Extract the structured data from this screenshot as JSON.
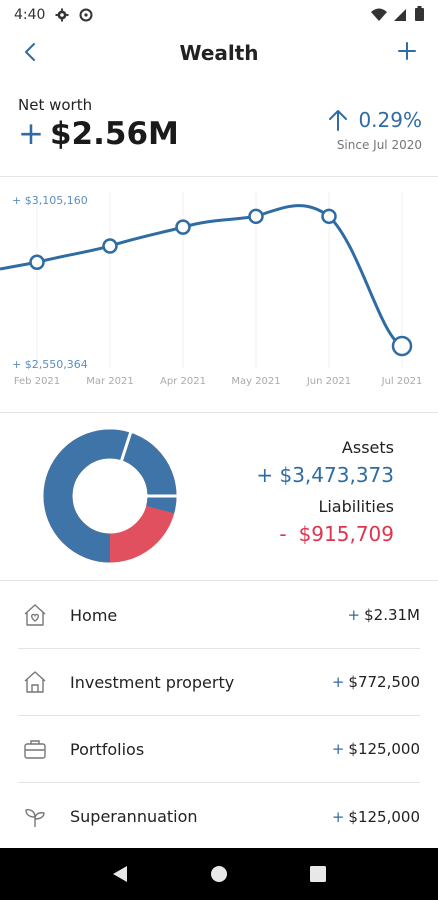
{
  "status_bar": {
    "time": "4:40"
  },
  "header": {
    "title": "Wealth"
  },
  "net_worth": {
    "label": "Net worth",
    "sign": "+",
    "value": "$2.56M",
    "change": "0.29%",
    "since": "Since Jul 2020"
  },
  "chart_data": {
    "type": "line",
    "x": [
      "Feb 2021",
      "Mar 2021",
      "Apr 2021",
      "May 2021",
      "Jun 2021",
      "Jul 2021"
    ],
    "max_label": "+ $3,105,160",
    "min_label": "+ $2,550,364",
    "series": [
      {
        "values": [
          2860000,
          2920000,
          2990000,
          3030000,
          3030000,
          2550364
        ]
      }
    ],
    "ylim": [
      2550364,
      3105160
    ],
    "grid": "vertical"
  },
  "summary": {
    "assets_label": "Assets",
    "assets_sign": "+",
    "assets_value": "$3,473,373",
    "liabilities_label": "Liabilities",
    "liabilities_sign": "-",
    "liabilities_value": "$915,709",
    "assets_color": "#3f74a8",
    "liabilities_color": "#e0505f"
  },
  "items": [
    {
      "icon": "home-heart-icon",
      "label": "Home",
      "sign": "+",
      "value": "$2.31M"
    },
    {
      "icon": "house-icon",
      "label": "Investment property",
      "sign": "+",
      "value": "$772,500"
    },
    {
      "icon": "briefcase-icon",
      "label": "Portfolios",
      "sign": "+",
      "value": "$125,000"
    },
    {
      "icon": "sprout-icon",
      "label": "Superannuation",
      "sign": "+",
      "value": "$125,000"
    }
  ]
}
